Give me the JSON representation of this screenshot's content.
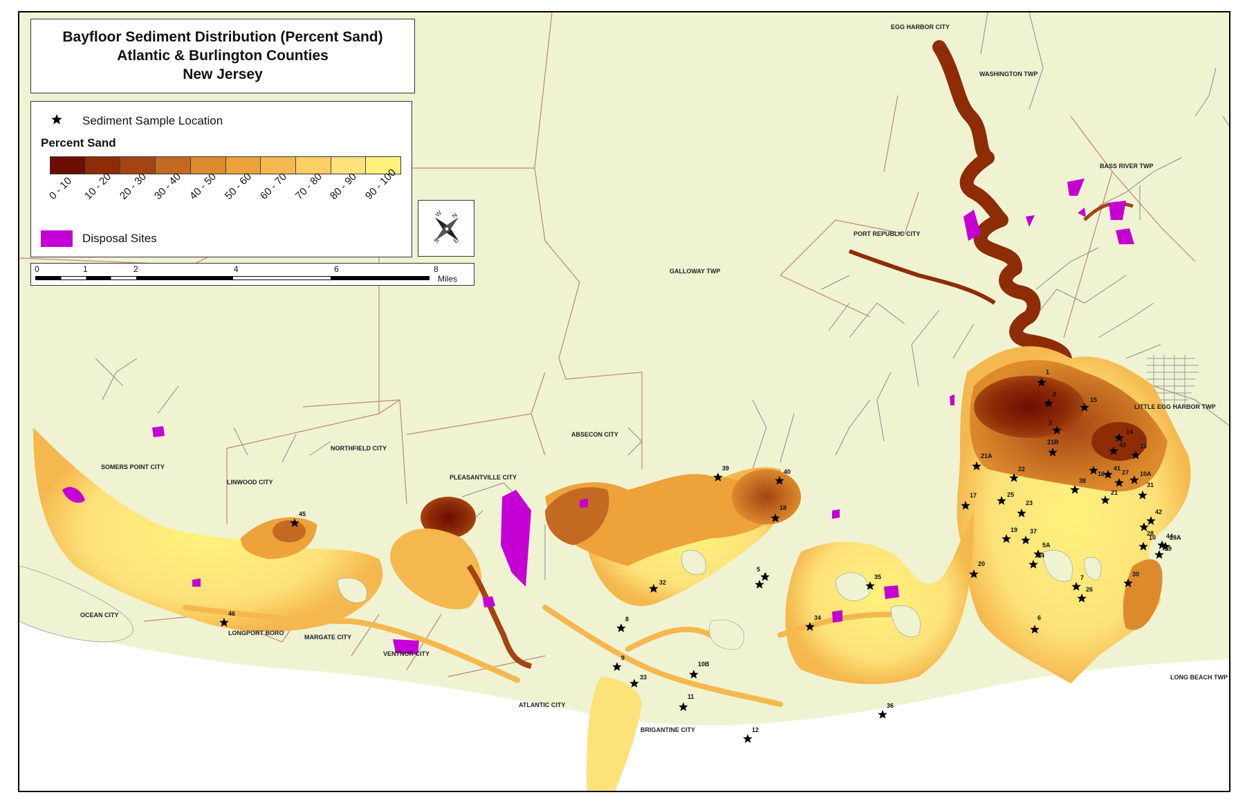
{
  "title": {
    "line1": "Bayfloor Sediment Distribution (Percent Sand)",
    "line2": "Atlantic & Burlington Counties",
    "line3": "New Jersey"
  },
  "legend": {
    "sample_label": "Sediment Sample Location",
    "percent_sand_label": "Percent Sand",
    "classes": [
      {
        "label": "0 - 10",
        "color": "#6e0d04"
      },
      {
        "label": "10 - 20",
        "color": "#8e2c06"
      },
      {
        "label": "20 - 30",
        "color": "#a44412"
      },
      {
        "label": "30 - 40",
        "color": "#c26a21"
      },
      {
        "label": "40 - 50",
        "color": "#dc8a2c"
      },
      {
        "label": "50 - 60",
        "color": "#eda23a"
      },
      {
        "label": "60 - 70",
        "color": "#f5b84e"
      },
      {
        "label": "70 - 80",
        "color": "#fbcf63"
      },
      {
        "label": "80 - 90",
        "color": "#fde27a"
      },
      {
        "label": "90 - 100",
        "color": "#fff27c"
      }
    ],
    "disposal_label": "Disposal Sites",
    "disposal_color": "#c400d4"
  },
  "scale": {
    "ticks": [
      "0",
      "1",
      "2",
      "4",
      "6",
      "8"
    ],
    "units": "Miles"
  },
  "compass": {
    "icon": "compass-rose-icon",
    "n": "N",
    "s": "S",
    "e": "E",
    "w": "W"
  },
  "colors": {
    "land": "#eff3d2",
    "water": "#ffffff",
    "boundary": "#c0837a",
    "creek": "#8a8a8a"
  },
  "places": {
    "egg_harbor_city": "EGG HARBOR CITY",
    "washington_twp": "WASHINGTON TWP",
    "bass_river_twp": "BASS RIVER TWP",
    "port_republic_city": "PORT REPUBLIC CITY",
    "galloway_twp": "GALLOWAY TWP",
    "little_egg_harbor_twp": "LITTLE EGG HARBOR TWP",
    "absecon_city": "ABSECON CITY",
    "northfield_city": "NORTHFIELD CITY",
    "somers_point_city": "SOMERS POINT CITY",
    "linwood_city": "LINWOOD CITY",
    "pleasantville_city": "PLEASANTVILLE CITY",
    "ocean_city": "OCEAN CITY",
    "longport_boro": "LONGPORT BORO",
    "margate_city": "MARGATE CITY",
    "ventnor_city": "VENTNOR CITY",
    "atlantic_city": "ATLANTIC CITY",
    "brigantine_city": "BRIGANTINE CITY",
    "long_beach_twp": "LONG BEACH TWP"
  },
  "sample_sites": [
    "1",
    "2",
    "3",
    "4",
    "5",
    "5A",
    "6",
    "7",
    "8",
    "9",
    "10",
    "10A",
    "10B",
    "11",
    "12",
    "13",
    "14",
    "15",
    "16",
    "17",
    "18",
    "19",
    "20",
    "21",
    "21A",
    "21B",
    "22",
    "23",
    "24",
    "25",
    "26",
    "27",
    "28",
    "28A",
    "29",
    "30",
    "31",
    "32",
    "33",
    "34",
    "35",
    "36",
    "37",
    "38",
    "39",
    "40",
    "41",
    "42",
    "43",
    "44",
    "45",
    "46"
  ]
}
